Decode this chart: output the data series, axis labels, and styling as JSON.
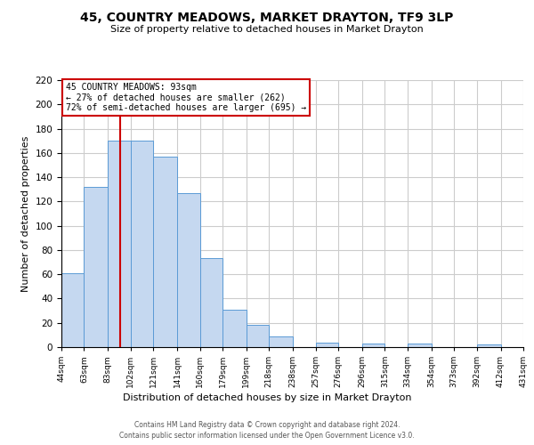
{
  "title": "45, COUNTRY MEADOWS, MARKET DRAYTON, TF9 3LP",
  "subtitle": "Size of property relative to detached houses in Market Drayton",
  "xlabel": "Distribution of detached houses by size in Market Drayton",
  "ylabel": "Number of detached properties",
  "footnote1": "Contains HM Land Registry data © Crown copyright and database right 2024.",
  "footnote2": "Contains public sector information licensed under the Open Government Licence v3.0.",
  "bin_edges": [
    44,
    63,
    83,
    102,
    121,
    141,
    160,
    179,
    199,
    218,
    238,
    257,
    276,
    296,
    315,
    334,
    354,
    373,
    392,
    412,
    431
  ],
  "bar_heights": [
    61,
    132,
    170,
    170,
    157,
    127,
    73,
    31,
    18,
    9,
    0,
    4,
    0,
    3,
    0,
    3,
    0,
    0,
    2,
    0
  ],
  "bar_color": "#c5d8f0",
  "bar_edgecolor": "#5b9bd5",
  "vline_x": 93,
  "vline_color": "#cc0000",
  "annotation_title": "45 COUNTRY MEADOWS: 93sqm",
  "annotation_line1": "← 27% of detached houses are smaller (262)",
  "annotation_line2": "72% of semi-detached houses are larger (695) →",
  "annotation_box_edgecolor": "#cc0000",
  "ylim": [
    0,
    220
  ],
  "yticks": [
    0,
    20,
    40,
    60,
    80,
    100,
    120,
    140,
    160,
    180,
    200,
    220
  ],
  "tick_labels": [
    "44sqm",
    "63sqm",
    "83sqm",
    "102sqm",
    "121sqm",
    "141sqm",
    "160sqm",
    "179sqm",
    "199sqm",
    "218sqm",
    "238sqm",
    "257sqm",
    "276sqm",
    "296sqm",
    "315sqm",
    "334sqm",
    "354sqm",
    "373sqm",
    "392sqm",
    "412sqm",
    "431sqm"
  ],
  "background_color": "#ffffff",
  "grid_color": "#cccccc"
}
